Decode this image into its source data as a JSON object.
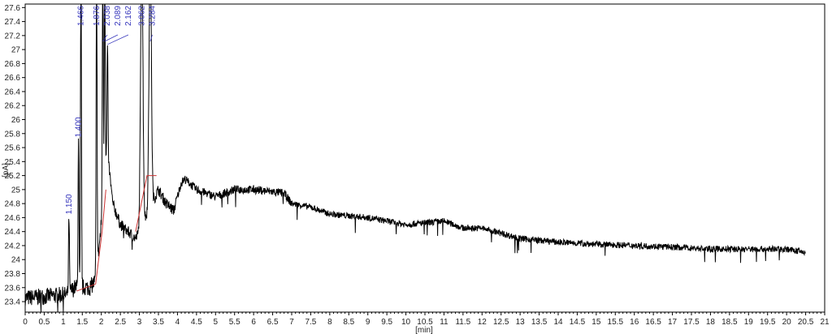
{
  "chart_data": {
    "type": "line",
    "title": "",
    "xlabel": "[min]",
    "ylabel": "[pA]",
    "xlim": [
      0,
      21
    ],
    "ylim": [
      23.25,
      27.65
    ],
    "x_ticks": [
      "0",
      "0.5",
      "1",
      "1.5",
      "2",
      "2.5",
      "3",
      "3.5",
      "4",
      "4.5",
      "5",
      "5.5",
      "6",
      "6.5",
      "7",
      "7.5",
      "8",
      "8.5",
      "9",
      "9.5",
      "10",
      "10.5",
      "11",
      "11.5",
      "12",
      "12.5",
      "13",
      "13.5",
      "14",
      "14.5",
      "15",
      "15.5",
      "16",
      "16.5",
      "17",
      "17.5",
      "18",
      "18.5",
      "19",
      "19.5",
      "20",
      "20.5",
      "21"
    ],
    "y_ticks": [
      "23.4",
      "23.6",
      "23.8",
      "24",
      "24.2",
      "24.4",
      "24.6",
      "24.8",
      "25",
      "25.2",
      "25.4",
      "25.6",
      "25.8",
      "26",
      "26.2",
      "26.4",
      "26.6",
      "26.8",
      "27",
      "27.2",
      "27.4",
      "27.6"
    ],
    "grid": false,
    "trace_color": "#000000",
    "baseline_color": "#cc3333",
    "label_color": "#3333bb",
    "baseline_trace": {
      "x": [
        0,
        1.1,
        1.3,
        1.7,
        1.85,
        2.0,
        2.15,
        2.3,
        2.5,
        2.7,
        2.9,
        3.0,
        3.5,
        3.7,
        3.9,
        4.1,
        4.2,
        4.5,
        5,
        5.5,
        6,
        6.8,
        7,
        7.5,
        8,
        9,
        10,
        11,
        11.5,
        12,
        13,
        14,
        15,
        16,
        17,
        18,
        19,
        20,
        20.5
      ],
      "y": [
        23.45,
        23.5,
        23.6,
        23.6,
        23.7,
        24.5,
        25.6,
        24.8,
        24.5,
        24.4,
        24.3,
        24.4,
        25.0,
        24.8,
        24.7,
        25.1,
        25.15,
        25.0,
        24.9,
        25.0,
        25.0,
        24.95,
        24.8,
        24.75,
        24.65,
        24.6,
        24.5,
        24.55,
        24.45,
        24.45,
        24.3,
        24.25,
        24.22,
        24.2,
        24.18,
        24.15,
        24.15,
        24.15,
        24.1
      ]
    },
    "peaks": [
      {
        "label": "1.150",
        "rt": 1.15,
        "apex": 24.6
      },
      {
        "label": "1.400",
        "rt": 1.4,
        "apex": 25.7
      },
      {
        "label": "1.466",
        "rt": 1.466,
        "apex": 28.5
      },
      {
        "label": "1.876",
        "rt": 1.876,
        "apex": 28.5
      },
      {
        "label": "2.038",
        "rt": 2.038,
        "apex": 28.5
      },
      {
        "label": "2.089",
        "rt": 2.089,
        "apex": 28.5
      },
      {
        "label": "2.162",
        "rt": 2.162,
        "apex": 27.05
      },
      {
        "label": "3.062",
        "rt": 3.062,
        "apex": 28.5
      },
      {
        "label": "3.284",
        "rt": 3.284,
        "apex": 28.5
      }
    ],
    "integration_baselines": [
      [
        [
          1.35,
          23.55
        ],
        [
          1.85,
          23.65
        ]
      ],
      [
        [
          1.85,
          23.65
        ],
        [
          2.02,
          24.4
        ],
        [
          2.12,
          25.0
        ]
      ],
      [
        [
          2.9,
          24.4
        ],
        [
          3.2,
          25.2
        ],
        [
          3.45,
          25.2
        ]
      ]
    ]
  }
}
